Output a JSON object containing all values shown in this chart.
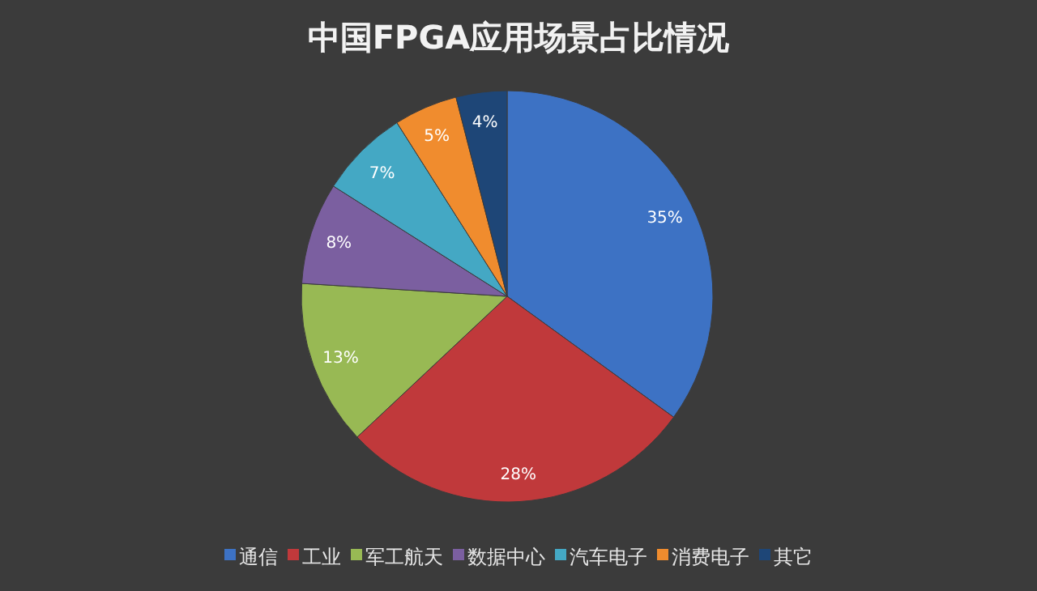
{
  "chart_data": {
    "type": "pie",
    "title": "中国FPGA应用场景占比情况",
    "categories": [
      "通信",
      "工业",
      "军工航天",
      "数据中心",
      "汽车电子",
      "消费电子",
      "其它"
    ],
    "values": [
      35,
      28,
      13,
      8,
      7,
      5,
      4
    ],
    "colors": [
      "#3d72c4",
      "#c0393b",
      "#98b954",
      "#7b5fa0",
      "#44a8c4",
      "#f08c2e",
      "#1e4677"
    ],
    "value_labels": [
      "35%",
      "28%",
      "13%",
      "8%",
      "7%",
      "5%",
      "4%"
    ],
    "legend": "bottom"
  }
}
